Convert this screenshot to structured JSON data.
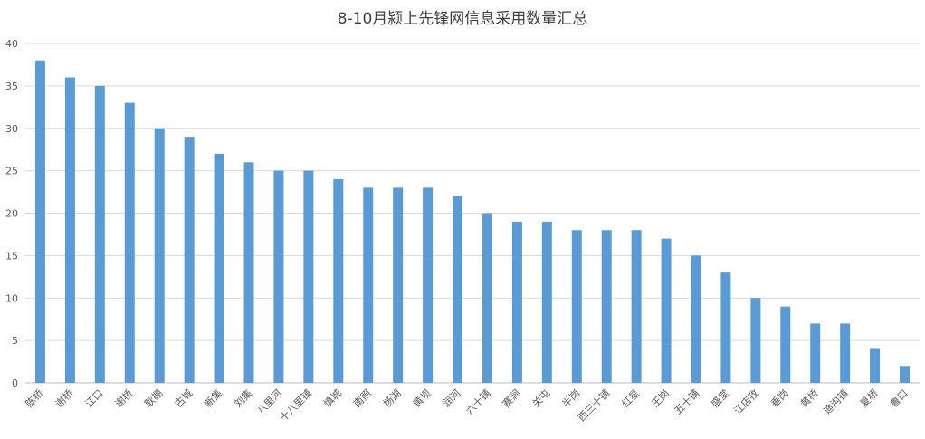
{
  "chart_data": {
    "type": "bar",
    "title": "8-10月颍上先锋网信息采用数量汇总",
    "xlabel": "",
    "ylabel": "",
    "ylim": [
      0,
      40
    ],
    "yticks": [
      0,
      5,
      10,
      15,
      20,
      25,
      30,
      35,
      40
    ],
    "grid": true,
    "legend": "none",
    "bar_color": "#5b9bd5",
    "categories": [
      "陈桥",
      "谢桥",
      "江口",
      "谢桥",
      "耿棚",
      "古城",
      "新集",
      "刘集",
      "八里河",
      "十八里铺",
      "慎城",
      "南照",
      "杨湖",
      "黄坝",
      "润河",
      "六十铺",
      "赛涧",
      "关屯",
      "半岗",
      "西三十铺",
      "红星",
      "王岗",
      "五十铺",
      "盛堂",
      "江店孜",
      "垂岗",
      "黄桥",
      "迪沟镇",
      "夏桥",
      "鲁口"
    ],
    "values": [
      38,
      36,
      35,
      33,
      30,
      29,
      27,
      26,
      25,
      25,
      24,
      23,
      23,
      23,
      22,
      20,
      19,
      19,
      18,
      18,
      18,
      17,
      15,
      13,
      10,
      9,
      7,
      7,
      4,
      2
    ]
  }
}
